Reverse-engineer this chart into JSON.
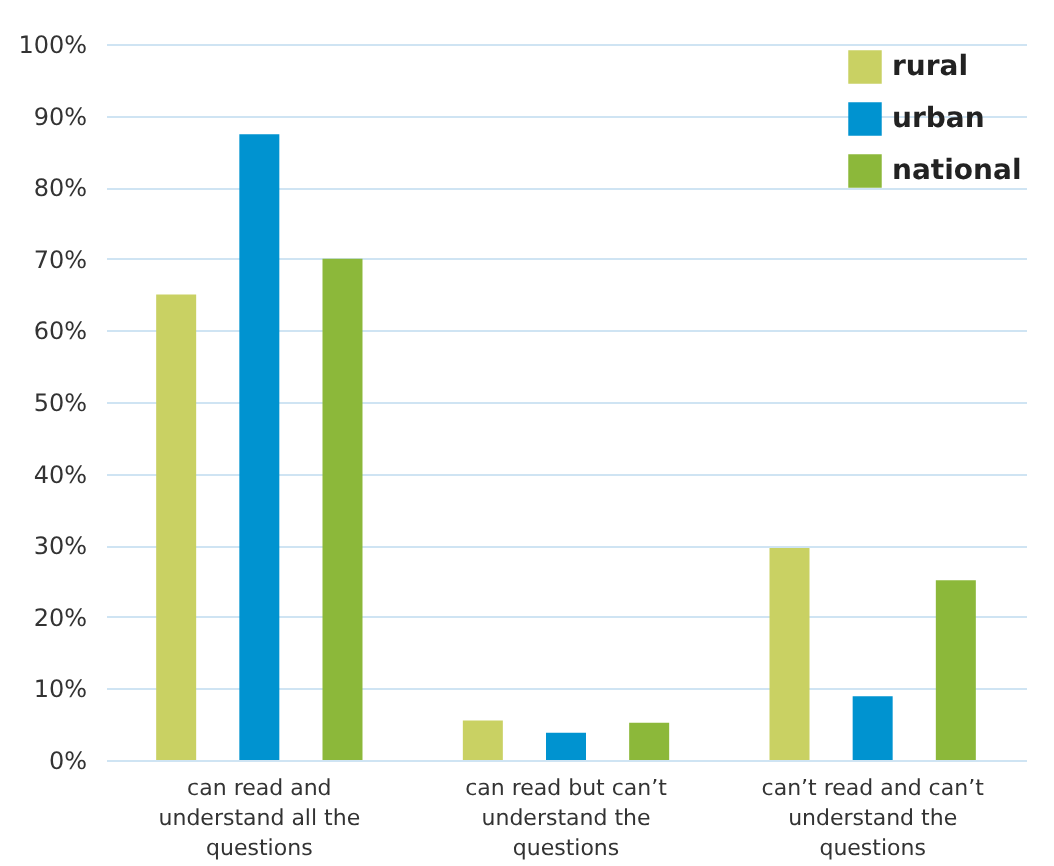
{
  "chart_data": {
    "type": "bar",
    "categories": [
      "can read and understand all the questions",
      "can read but can’t understand the questions",
      "can’t read and can’t understand the questions"
    ],
    "series": [
      {
        "name": "rural",
        "color": "#c9d163",
        "values": [
          65,
          5.5,
          29.6
        ]
      },
      {
        "name": "urban",
        "color": "#0093d0",
        "values": [
          87.4,
          3.8,
          8.9
        ]
      },
      {
        "name": "national",
        "color": "#8cb83a",
        "values": [
          70,
          5.2,
          25.1
        ]
      }
    ],
    "ylim": [
      0,
      100
    ],
    "yticks": [
      {
        "value": 0,
        "label": "0%"
      },
      {
        "value": 10,
        "label": "10%"
      },
      {
        "value": 20,
        "label": "20%"
      },
      {
        "value": 30,
        "label": "30%"
      },
      {
        "value": 40,
        "label": "40%"
      },
      {
        "value": 50,
        "label": "50%"
      },
      {
        "value": 60,
        "label": "60%"
      },
      {
        "value": 70,
        "label": "70%"
      },
      {
        "value": 80,
        "label": "80%"
      },
      {
        "value": 90,
        "label": "90%"
      },
      {
        "value": 100,
        "label": "100%"
      }
    ],
    "grid": "y",
    "legend": "top right"
  }
}
